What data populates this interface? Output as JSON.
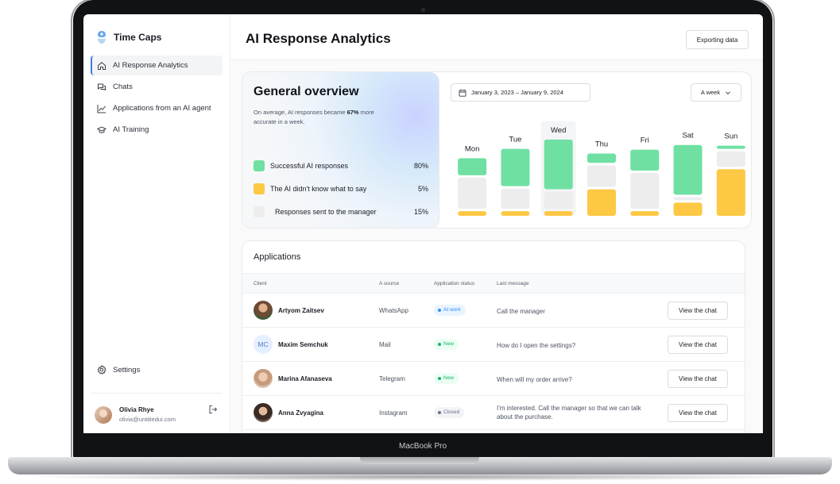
{
  "device": {
    "model_label": "MacBook Pro"
  },
  "sidebar": {
    "brand": "Time Caps",
    "items": [
      {
        "label": "AI Response Analytics",
        "icon": "home-icon",
        "active": true
      },
      {
        "label": "Chats",
        "icon": "chat-bubbles-icon",
        "active": false
      },
      {
        "label": "Applications from an AI agent",
        "icon": "trend-chart-icon",
        "active": false
      },
      {
        "label": "AI Training",
        "icon": "graduation-cap-icon",
        "active": false
      }
    ],
    "settings_label": "Settings",
    "user": {
      "name": "Olivia Rhye",
      "email": "olivia@untitledui.com"
    }
  },
  "header": {
    "title": "AI Response Analytics",
    "export_label": "Exporting data"
  },
  "overview": {
    "title": "General overview",
    "subtitle_prefix": "On average, AI responses became ",
    "subtitle_highlight": "67%",
    "subtitle_suffix": " more accurate in a week.",
    "legend": [
      {
        "label": "Successful AI responses",
        "value": "80%",
        "color": "#6fe0a2"
      },
      {
        "label": "The AI didn't know what to say",
        "value": "5%",
        "color": "#fdc843"
      },
      {
        "label": "Responses sent to the manager",
        "value": "15%",
        "color": "#ededed"
      }
    ],
    "date_range": "January 3, 2023 – January 9, 2024",
    "period": "A week"
  },
  "chart_data": {
    "type": "bar",
    "stacked": true,
    "categories": [
      "Mon",
      "Tue",
      "Wed",
      "Thu",
      "Fri",
      "Sat",
      "Sun"
    ],
    "series": [
      {
        "name": "Successful AI responses",
        "color": "#6fe0a2",
        "values": [
          22,
          48,
          64,
          12,
          27,
          64,
          4
        ]
      },
      {
        "name": "Responses sent to the manager",
        "color": "#ededed",
        "values": [
          40,
          26,
          22,
          28,
          46,
          4,
          20
        ]
      },
      {
        "name": "The AI didn't know what to say",
        "color": "#fdc843",
        "values": [
          6,
          6,
          6,
          34,
          6,
          17,
          60
        ]
      }
    ],
    "highlight_category": "Wed"
  },
  "applications": {
    "title": "Applications",
    "columns": [
      "Client",
      "A source",
      "Application status",
      "Last message"
    ],
    "rows": [
      {
        "client": "Artyom Zaitsev",
        "avatar": "photo",
        "source": "WhatsApp",
        "status": "At work",
        "status_color": "#2e90fa",
        "status_bg": "#eaf4ff",
        "message": "Call the manager",
        "action": "View the chat"
      },
      {
        "client": "Maxim Semchuk",
        "avatar": "MC",
        "source": "Mail",
        "status": "New",
        "status_color": "#12b76a",
        "status_bg": "#ecfdf3",
        "message": "How do I open the settings?",
        "action": "View the chat"
      },
      {
        "client": "Marina Afanaseva",
        "avatar": "photo",
        "source": "Telegram",
        "status": "New",
        "status_color": "#12b76a",
        "status_bg": "#ecfdf3",
        "message": "When will my order arrive?",
        "action": "View the chat"
      },
      {
        "client": "Anna Zvyagina",
        "avatar": "photo",
        "source": "Instagram",
        "status": "Closed",
        "status_color": "#667085",
        "status_bg": "#f2f4f7",
        "message": "I'm interested. Call the manager so that we can talk about the purchase.",
        "action": "View the chat"
      }
    ]
  }
}
